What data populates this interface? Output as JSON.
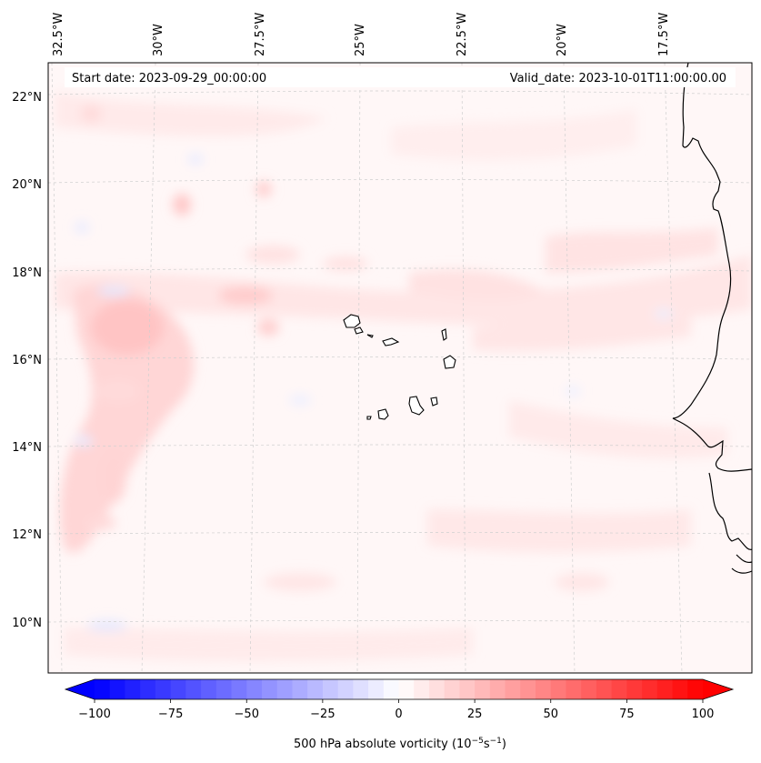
{
  "header": {
    "start_date": "Start date: 2023-09-29_00:00:00",
    "valid_date": "Valid_date: 2023-10-01T11:00:00.00"
  },
  "map": {
    "lon_labels": [
      "32.5°W",
      "30°W",
      "27.5°W",
      "25°W",
      "22.5°W",
      "20°W",
      "17.5°W"
    ],
    "lat_labels": [
      "22°N",
      "20°N",
      "18°N",
      "16°N",
      "14°N",
      "12°N",
      "10°N"
    ],
    "field_colors": {
      "positive_light": "#ffe9e9",
      "positive_mid": "#ffd2d2",
      "negative_light": "#eef0ff",
      "background": "#fff7f7"
    }
  },
  "colorbar": {
    "ticks": [
      "−100",
      "−75",
      "−50",
      "−25",
      "0",
      "25",
      "50",
      "75",
      "100"
    ],
    "label_main": "500 hPa absolute vorticity (10",
    "label_exp1": "−5",
    "label_mid": "s",
    "label_exp2": "−1",
    "label_end": ")",
    "min_color": "#0000ff",
    "mid_color": "#ffffff",
    "max_color": "#ff0000"
  }
}
